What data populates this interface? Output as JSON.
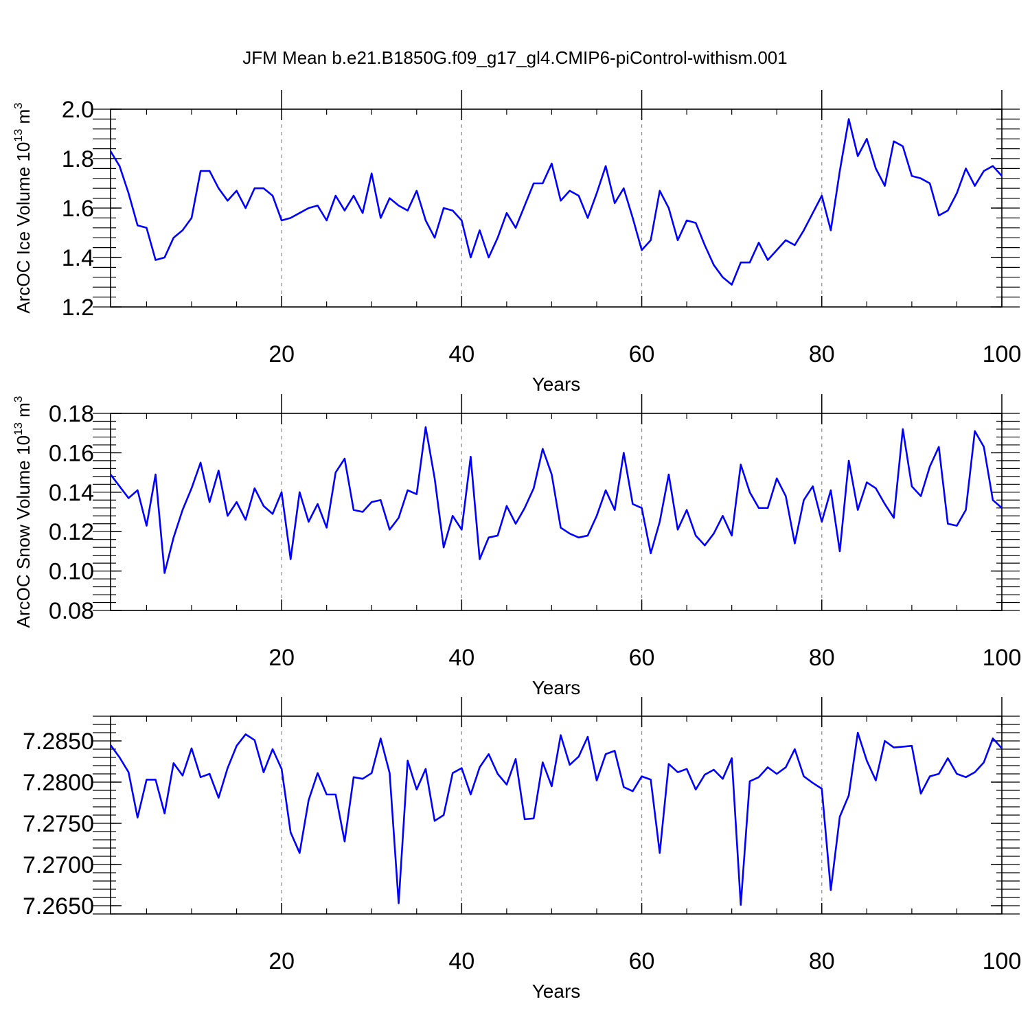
{
  "title": "JFM Mean b.e21.B1850G.f09_g17_gl4.CMIP6-piControl-withism.001",
  "chart_data": [
    {
      "type": "line",
      "xlabel": "Years",
      "ylabel": "ArcOC Ice Volume 10",
      "ylabel_exp": "13",
      "ylabel_unit": " m",
      "ylabel_unit_exp": "3",
      "xlim": [
        1,
        100
      ],
      "ylim": [
        1.2,
        2.0
      ],
      "xticks": [
        20,
        40,
        60,
        80,
        100
      ],
      "yticks": [
        1.2,
        1.4,
        1.6,
        1.8,
        2.0
      ],
      "ytick_labels": [
        "1.2",
        "1.4",
        "1.6",
        "1.8",
        "2.0"
      ],
      "grid": "dashed vertical at major x ticks",
      "color": "#0000ff",
      "values": [
        1.83,
        1.77,
        1.66,
        1.53,
        1.52,
        1.39,
        1.4,
        1.48,
        1.51,
        1.56,
        1.75,
        1.75,
        1.68,
        1.63,
        1.67,
        1.6,
        1.68,
        1.68,
        1.65,
        1.55,
        1.56,
        1.58,
        1.6,
        1.61,
        1.55,
        1.65,
        1.59,
        1.65,
        1.58,
        1.74,
        1.56,
        1.64,
        1.61,
        1.59,
        1.67,
        1.55,
        1.48,
        1.6,
        1.59,
        1.55,
        1.4,
        1.51,
        1.4,
        1.48,
        1.58,
        1.52,
        1.61,
        1.7,
        1.7,
        1.78,
        1.63,
        1.67,
        1.65,
        1.56,
        1.66,
        1.77,
        1.62,
        1.68,
        1.56,
        1.43,
        1.47,
        1.67,
        1.6,
        1.47,
        1.55,
        1.54,
        1.45,
        1.37,
        1.32,
        1.29,
        1.38,
        1.38,
        1.46,
        1.39,
        1.43,
        1.47,
        1.45,
        1.51,
        1.58,
        1.65,
        1.51,
        1.75,
        1.96,
        1.81,
        1.88,
        1.76,
        1.69,
        1.87,
        1.85,
        1.73,
        1.72,
        1.7,
        1.57,
        1.59,
        1.66,
        1.76,
        1.69,
        1.75,
        1.77,
        1.73
      ]
    },
    {
      "type": "line",
      "xlabel": "Years",
      "ylabel": "ArcOC Snow Volume 10",
      "ylabel_exp": "13",
      "ylabel_unit": " m",
      "ylabel_unit_exp": "3",
      "xlim": [
        1,
        100
      ],
      "ylim": [
        0.08,
        0.18
      ],
      "xticks": [
        20,
        40,
        60,
        80,
        100
      ],
      "yticks": [
        0.08,
        0.1,
        0.12,
        0.14,
        0.16,
        0.18
      ],
      "ytick_labels": [
        "0.08",
        "0.10",
        "0.12",
        "0.14",
        "0.16",
        "0.18"
      ],
      "grid": "dashed vertical at major x ticks",
      "color": "#0000ff",
      "values": [
        0.149,
        0.143,
        0.137,
        0.141,
        0.123,
        0.149,
        0.099,
        0.117,
        0.131,
        0.142,
        0.155,
        0.135,
        0.151,
        0.128,
        0.135,
        0.126,
        0.142,
        0.133,
        0.129,
        0.14,
        0.106,
        0.14,
        0.125,
        0.134,
        0.122,
        0.15,
        0.157,
        0.131,
        0.13,
        0.135,
        0.136,
        0.121,
        0.127,
        0.141,
        0.139,
        0.173,
        0.147,
        0.112,
        0.128,
        0.121,
        0.158,
        0.106,
        0.117,
        0.118,
        0.133,
        0.124,
        0.132,
        0.142,
        0.162,
        0.149,
        0.122,
        0.119,
        0.117,
        0.118,
        0.128,
        0.141,
        0.131,
        0.16,
        0.134,
        0.132,
        0.109,
        0.125,
        0.149,
        0.121,
        0.131,
        0.118,
        0.113,
        0.119,
        0.128,
        0.118,
        0.154,
        0.14,
        0.132,
        0.132,
        0.147,
        0.138,
        0.114,
        0.136,
        0.143,
        0.125,
        0.141,
        0.11,
        0.156,
        0.131,
        0.145,
        0.142,
        0.134,
        0.127,
        0.172,
        0.143,
        0.138,
        0.153,
        0.163,
        0.124,
        0.123,
        0.131,
        0.171,
        0.163,
        0.136,
        0.132
      ]
    },
    {
      "type": "line",
      "xlabel": "Years",
      "ylabel": "",
      "xlim": [
        1,
        100
      ],
      "ylim": [
        7.264,
        7.288
      ],
      "xticks": [
        20,
        40,
        60,
        80,
        100
      ],
      "yticks": [
        7.265,
        7.27,
        7.275,
        7.28,
        7.285
      ],
      "ytick_labels": [
        "7.2650",
        "7.2700",
        "7.2750",
        "7.2800",
        "7.2850"
      ],
      "grid": "dashed vertical at major x ticks",
      "color": "#0000ff",
      "values": [
        7.2845,
        7.283,
        7.2812,
        7.2757,
        7.2803,
        7.2803,
        7.2762,
        7.2823,
        7.2808,
        7.2841,
        7.2806,
        7.281,
        7.2781,
        7.2817,
        7.2844,
        7.2858,
        7.2851,
        7.2812,
        7.284,
        7.2816,
        7.2739,
        7.2714,
        7.2778,
        7.2811,
        7.2785,
        7.2785,
        7.2728,
        7.2806,
        7.2804,
        7.2811,
        7.2853,
        7.2811,
        7.2653,
        7.2826,
        7.2791,
        7.2816,
        7.2753,
        7.276,
        7.2811,
        7.2817,
        7.2785,
        7.2818,
        7.2834,
        7.281,
        7.2797,
        7.2828,
        7.2755,
        7.2756,
        7.2824,
        7.2795,
        7.2857,
        7.2821,
        7.2831,
        7.2855,
        7.2802,
        7.2834,
        7.2838,
        7.2794,
        7.2789,
        7.2807,
        7.2803,
        7.2714,
        7.2822,
        7.2812,
        7.2816,
        7.2791,
        7.2809,
        7.2815,
        7.2804,
        7.2829,
        7.2651,
        7.2801,
        7.2806,
        7.2818,
        7.281,
        7.2818,
        7.284,
        7.2807,
        7.2799,
        7.2792,
        7.2669,
        7.2758,
        7.2784,
        7.286,
        7.2826,
        7.2802,
        7.285,
        7.2842,
        7.2843,
        7.2844,
        7.2786,
        7.2807,
        7.281,
        7.2829,
        7.281,
        7.2806,
        7.2812,
        7.2824,
        7.2853,
        7.2841
      ]
    }
  ]
}
